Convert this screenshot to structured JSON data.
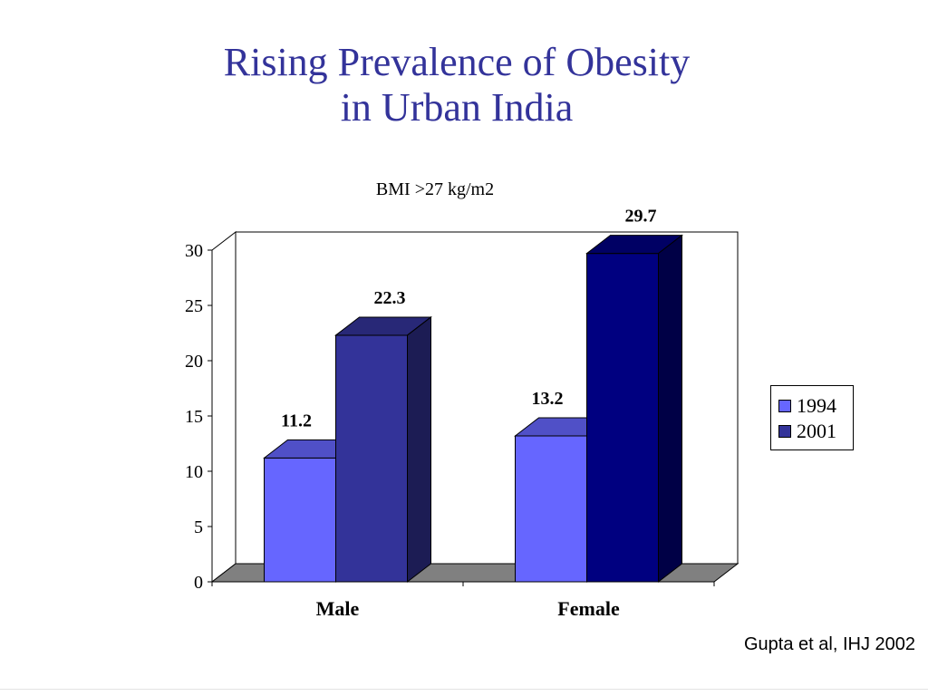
{
  "slide": {
    "title_line1": "Rising Prevalence of Obesity",
    "title_line2": "in Urban India",
    "citation": "Gupta et al, IHJ 2002"
  },
  "colors": {
    "title": "#33339a",
    "series_1994": "#6666ff",
    "series_2001_male": "#333399",
    "series_2001_female": "#000080",
    "floor": "#808080"
  },
  "chart_data": {
    "type": "bar",
    "title": "BMI >27 kg/m2",
    "categories": [
      "Male",
      "Female"
    ],
    "series": [
      {
        "name": "1994",
        "values": [
          11.2,
          13.2
        ]
      },
      {
        "name": "2001",
        "values": [
          22.3,
          29.7
        ]
      }
    ],
    "data_labels": [
      [
        "11.2",
        "13.2"
      ],
      [
        "22.3",
        "29.7"
      ]
    ],
    "ylim": [
      0,
      30
    ],
    "yticks": [
      "0",
      "5",
      "10",
      "15",
      "20",
      "25",
      "30"
    ],
    "grid": false,
    "legend": "right",
    "style": "3d-column"
  }
}
